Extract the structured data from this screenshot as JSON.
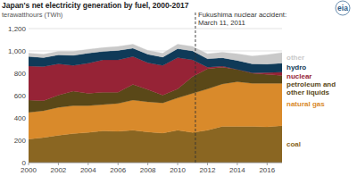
{
  "chart_data": {
    "type": "area",
    "stacked": true,
    "title": "Japan's net electricity generation by fuel, 2000-2017",
    "subtitle": "terawatthours (TWh)",
    "logo": "eia",
    "annotation": {
      "text": [
        "Fukushima nuclear accident:",
        "March 11, 2011"
      ],
      "x": 2011.19,
      "line_style": "dashed"
    },
    "x": [
      2000,
      2001,
      2002,
      2003,
      2004,
      2005,
      2006,
      2007,
      2008,
      2009,
      2010,
      2011,
      2012,
      2013,
      2014,
      2015,
      2016,
      2017
    ],
    "xlim": [
      2000,
      2017
    ],
    "xticks": [
      2000,
      2002,
      2004,
      2006,
      2008,
      2010,
      2012,
      2014,
      2016
    ],
    "ylim": [
      0,
      1200
    ],
    "yticks": [
      0,
      200,
      400,
      600,
      800,
      {
        "value": 1000,
        "label": "1,000"
      },
      {
        "value": 1200,
        "label": "1,200"
      }
    ],
    "grid": true,
    "series": [
      {
        "name": "coal",
        "color": "#8a6622",
        "values": [
          210,
          225,
          245,
          260,
          270,
          285,
          280,
          290,
          275,
          265,
          290,
          270,
          290,
          325,
          325,
          325,
          320,
          330
        ]
      },
      {
        "name": "natural gas",
        "color": "#d98a2b",
        "values": [
          240,
          240,
          250,
          250,
          240,
          235,
          250,
          270,
          270,
          270,
          290,
          350,
          370,
          380,
          400,
          385,
          390,
          380
        ]
      },
      {
        "name": "petroleum and other liquids",
        "color": "#5a4818",
        "values": [
          110,
          90,
          110,
          130,
          110,
          110,
          100,
          140,
          110,
          70,
          80,
          150,
          180,
          150,
          110,
          90,
          80,
          70
        ]
      },
      {
        "name": "nuclear",
        "color": "#962336",
        "values": [
          305,
          305,
          280,
          230,
          270,
          290,
          290,
          250,
          240,
          265,
          280,
          150,
          15,
          9,
          0,
          5,
          17,
          30
        ]
      },
      {
        "name": "hydro",
        "color": "#0f3a58",
        "values": [
          85,
          80,
          80,
          90,
          90,
          75,
          85,
          75,
          75,
          75,
          80,
          80,
          75,
          75,
          80,
          80,
          75,
          80
        ]
      },
      {
        "name": "other",
        "color": "#c9c9c9",
        "values": [
          30,
          30,
          30,
          35,
          35,
          35,
          35,
          35,
          35,
          35,
          40,
          40,
          45,
          50,
          60,
          70,
          85,
          95
        ]
      }
    ]
  }
}
